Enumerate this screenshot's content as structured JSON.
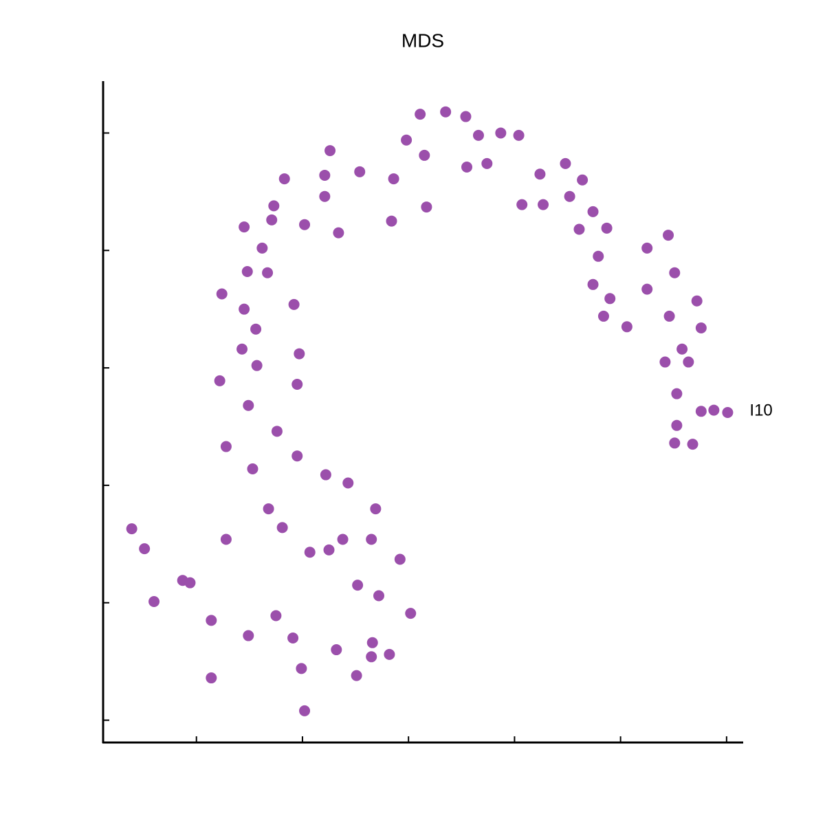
{
  "chart_data": {
    "type": "scatter",
    "title": "MDS",
    "color": "#9b4fab",
    "x": [
      2.11,
      2.35,
      2.54,
      1.98,
      2.66,
      2.87,
      3.04,
      1.26,
      2.15,
      2.55,
      2.74,
      1.21,
      1.54,
      1.86,
      0.83,
      3.24,
      3.48,
      3.64,
      1.21,
      0.73,
      2.17,
      3.07,
      3.27,
      3.52,
      0.71,
      1.02,
      1.84,
      0.45,
      1.34,
      3.74,
      3.61,
      3.87,
      4.45,
      0.62,
      4.25,
      0.48,
      0.67,
      3.79,
      4.51,
      0.24,
      3.74,
      4.25,
      0.92,
      0.45,
      3.9,
      4.72,
      3.84,
      4.46,
      0.56,
      4.06,
      4.76,
      0.43,
      0.97,
      4.58,
      0.57,
      4.42,
      4.64,
      0.22,
      0.95,
      4.53,
      0.49,
      4.76,
      4.88,
      5.01,
      4.53,
      0.76,
      4.51,
      4.68,
      0.28,
      0.95,
      0.53,
      1.22,
      1.43,
      0.68,
      1.69,
      -0.61,
      0.81,
      -0.49,
      0.28,
      1.38,
      1.65,
      1.07,
      1.25,
      1.92,
      -0.13,
      -0.06,
      1.52,
      1.72,
      -0.4,
      2.02,
      0.14,
      0.75,
      0.49,
      0.91,
      1.66,
      1.32,
      1.65,
      1.82,
      0.99,
      0.14,
      1.51,
      1.02
    ],
    "values": [
      5.16,
      5.18,
      5.14,
      4.94,
      4.98,
      5.0,
      4.98,
      4.85,
      4.81,
      4.71,
      4.74,
      4.64,
      4.67,
      4.61,
      4.61,
      4.65,
      4.74,
      4.6,
      4.46,
      4.38,
      4.37,
      4.39,
      4.39,
      4.46,
      4.26,
      4.22,
      4.25,
      4.2,
      4.15,
      4.33,
      4.18,
      4.19,
      4.13,
      4.02,
      4.02,
      3.82,
      3.81,
      3.95,
      3.81,
      3.63,
      3.71,
      3.67,
      3.54,
      3.5,
      3.59,
      3.57,
      3.44,
      3.44,
      3.33,
      3.35,
      3.34,
      3.16,
      3.12,
      3.16,
      3.02,
      3.05,
      3.05,
      2.89,
      2.86,
      2.78,
      2.68,
      2.63,
      2.64,
      2.62,
      2.51,
      2.46,
      2.36,
      2.35,
      2.33,
      2.25,
      2.14,
      2.09,
      2.02,
      1.8,
      1.8,
      1.63,
      1.64,
      1.46,
      1.54,
      1.54,
      1.54,
      1.43,
      1.45,
      1.37,
      1.19,
      1.17,
      1.15,
      1.06,
      1.01,
      0.91,
      0.85,
      0.89,
      0.72,
      0.7,
      0.66,
      0.6,
      0.54,
      0.56,
      0.44,
      0.36,
      0.38,
      0.08
    ],
    "point_labels": [
      null,
      null,
      null,
      null,
      null,
      null,
      null,
      null,
      null,
      null,
      null,
      null,
      null,
      null,
      null,
      null,
      null,
      null,
      null,
      null,
      null,
      null,
      null,
      null,
      null,
      null,
      null,
      null,
      null,
      null,
      null,
      null,
      null,
      null,
      null,
      null,
      null,
      null,
      null,
      null,
      null,
      null,
      null,
      null,
      null,
      null,
      null,
      null,
      null,
      null,
      null,
      null,
      null,
      null,
      null,
      null,
      null,
      null,
      null,
      null,
      null,
      null,
      null,
      "I10",
      null,
      null,
      null,
      null,
      null,
      null,
      null,
      null,
      null,
      null,
      null,
      null,
      null,
      null,
      null,
      null,
      null,
      null,
      null,
      null,
      null,
      null,
      null,
      null,
      null,
      null,
      null,
      null,
      null,
      null,
      null,
      null,
      null,
      null,
      null,
      null,
      null,
      null
    ],
    "xlim": [
      -0.88,
      5.15
    ],
    "ylim": [
      -0.19,
      5.43
    ],
    "xticks": [
      0,
      1,
      2,
      3,
      4,
      5
    ],
    "yticks": [
      0,
      1,
      2,
      3,
      4,
      5
    ]
  }
}
